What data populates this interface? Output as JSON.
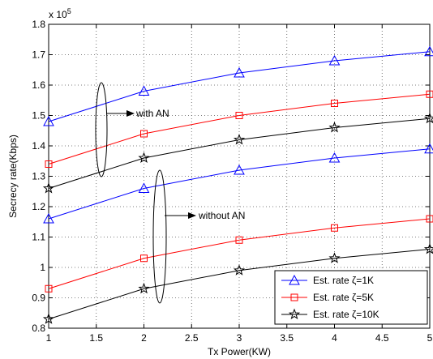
{
  "chart_data": {
    "type": "line",
    "xlabel": "Tx Power(KW)",
    "ylabel": "Secrecy rate(Kbps)",
    "y_multiplier_label": "x 10",
    "y_multiplier_exponent": "5",
    "xlim": [
      1,
      5
    ],
    "ylim": [
      0.8,
      1.8
    ],
    "grid": true,
    "legend_position": "bottom-right",
    "x_ticks": [
      "1",
      "1.5",
      "2",
      "2.5",
      "3",
      "3.5",
      "4",
      "4.5",
      "5"
    ],
    "y_ticks": [
      "0.8",
      "0.9",
      "1",
      "1.1",
      "1.2",
      "1.3",
      "1.4",
      "1.5",
      "1.6",
      "1.7",
      "1.8"
    ],
    "x": [
      1,
      2,
      3,
      4,
      5
    ],
    "series": [
      {
        "name": "Est. rate ζ=1K",
        "group": "with AN",
        "color": "#0000ff",
        "marker": "triangle",
        "values": [
          1.48,
          1.58,
          1.64,
          1.68,
          1.71
        ],
        "in_legend": true
      },
      {
        "name": "Est. rate ζ=5K",
        "group": "with AN",
        "color": "#ff0000",
        "marker": "square",
        "values": [
          1.34,
          1.44,
          1.5,
          1.54,
          1.57
        ],
        "in_legend": true
      },
      {
        "name": "Est. rate ζ=10K",
        "group": "with AN",
        "color": "#000000",
        "marker": "star",
        "values": [
          1.26,
          1.36,
          1.42,
          1.46,
          1.49
        ],
        "in_legend": true
      },
      {
        "group": "without AN",
        "color": "#0000ff",
        "marker": "triangle",
        "values": [
          1.16,
          1.26,
          1.32,
          1.36,
          1.39
        ],
        "in_legend": false
      },
      {
        "group": "without AN",
        "color": "#ff0000",
        "marker": "square",
        "values": [
          0.93,
          1.03,
          1.09,
          1.13,
          1.16
        ],
        "in_legend": false
      },
      {
        "group": "without AN",
        "color": "#000000",
        "marker": "star",
        "values": [
          0.83,
          0.93,
          0.99,
          1.03,
          1.06
        ],
        "in_legend": false
      }
    ],
    "annotations": [
      {
        "text": "with AN",
        "target_group": "with AN"
      },
      {
        "text": "without AN",
        "target_group": "without AN"
      }
    ]
  }
}
